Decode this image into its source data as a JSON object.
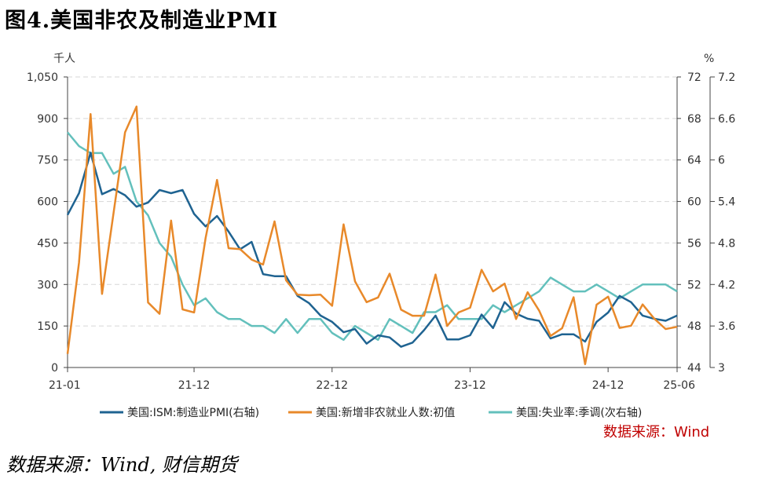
{
  "figure": {
    "title": "图4.美国非农及制造业PMI",
    "source": "数据来源：Wind, 财信期货"
  },
  "chart_data": {
    "type": "line",
    "title": "",
    "inner_source": "数据来源：Wind",
    "x_ticks": [
      "21-01",
      "21-12",
      "22-12",
      "23-12",
      "24-12",
      "25-06"
    ],
    "left_axis": {
      "unit": "千人",
      "ticks": [
        "0",
        "150",
        "300",
        "450",
        "600",
        "750",
        "900",
        "1,050"
      ],
      "ylim": [
        0,
        1050
      ]
    },
    "right_axis": {
      "unit": "%",
      "ticks": [
        "44",
        "48",
        "52",
        "56",
        "60",
        "64",
        "68",
        "72"
      ],
      "ylim": [
        44,
        72
      ]
    },
    "right_axis2": {
      "ticks": [
        "3",
        "3.6",
        "4.2",
        "4.8",
        "5.4",
        "6",
        "6.6",
        "7.2"
      ],
      "ylim": [
        3,
        7.2
      ]
    },
    "grid": "horizontal dashed",
    "legend_position": "bottom",
    "months": [
      "2021-01",
      "2021-02",
      "2021-03",
      "2021-04",
      "2021-05",
      "2021-06",
      "2021-07",
      "2021-08",
      "2021-09",
      "2021-10",
      "2021-11",
      "2021-12",
      "2022-01",
      "2022-02",
      "2022-03",
      "2022-04",
      "2022-05",
      "2022-06",
      "2022-07",
      "2022-08",
      "2022-09",
      "2022-10",
      "2022-11",
      "2022-12",
      "2023-01",
      "2023-02",
      "2023-03",
      "2023-04",
      "2023-05",
      "2023-06",
      "2023-07",
      "2023-08",
      "2023-09",
      "2023-10",
      "2023-11",
      "2023-12",
      "2024-01",
      "2024-02",
      "2024-03",
      "2024-04",
      "2024-05",
      "2024-06",
      "2024-07",
      "2024-08",
      "2024-09",
      "2024-10",
      "2024-11",
      "2024-12",
      "2025-01",
      "2025-02",
      "2025-03",
      "2025-04",
      "2025-05",
      "2025-06"
    ],
    "series": [
      {
        "name": "美国:ISM:制造业PMI(右轴)",
        "axis": "right",
        "color": "#1f6391",
        "values": [
          58.7,
          60.8,
          64.7,
          60.7,
          61.2,
          60.6,
          59.5,
          59.9,
          61.1,
          60.8,
          61.1,
          58.8,
          57.6,
          58.6,
          57.1,
          55.4,
          56.1,
          53.0,
          52.8,
          52.8,
          50.9,
          50.2,
          49.0,
          48.4,
          47.4,
          47.7,
          46.3,
          47.1,
          46.9,
          46.0,
          46.4,
          47.6,
          49.0,
          46.7,
          46.7,
          47.1,
          49.1,
          47.8,
          50.3,
          49.2,
          48.7,
          48.5,
          46.8,
          47.2,
          47.2,
          46.5,
          48.4,
          49.3,
          50.9,
          50.3,
          49.0,
          48.7,
          48.5,
          49.0
        ]
      },
      {
        "name": "美国:新增非农就业人数:初值",
        "axis": "left",
        "color": "#e8892a",
        "values": [
          49,
          379,
          916,
          266,
          559,
          850,
          943,
          235,
          194,
          531,
          210,
          199,
          467,
          678,
          431,
          428,
          390,
          372,
          528,
          315,
          263,
          261,
          263,
          223,
          517,
          311,
          236,
          253,
          339,
          209,
          187,
          187,
          336,
          150,
          199,
          216,
          353,
          275,
          303,
          175,
          272,
          206,
          114,
          142,
          254,
          12,
          227,
          256,
          143,
          151,
          228,
          177,
          139,
          147
        ]
      },
      {
        "name": "美国:失业率:季调(次右轴)",
        "axis": "right2",
        "color": "#63c0bc",
        "values": [
          6.4,
          6.2,
          6.1,
          6.1,
          5.8,
          5.9,
          5.4,
          5.2,
          4.8,
          4.6,
          4.2,
          3.9,
          4.0,
          3.8,
          3.7,
          3.7,
          3.6,
          3.6,
          3.5,
          3.7,
          3.5,
          3.7,
          3.7,
          3.5,
          3.4,
          3.6,
          3.5,
          3.4,
          3.7,
          3.6,
          3.5,
          3.8,
          3.8,
          3.9,
          3.7,
          3.7,
          3.7,
          3.9,
          3.8,
          3.9,
          4.0,
          4.1,
          4.3,
          4.2,
          4.1,
          4.1,
          4.2,
          4.1,
          4.0,
          4.1,
          4.2,
          4.2,
          4.2,
          4.1
        ]
      }
    ]
  }
}
